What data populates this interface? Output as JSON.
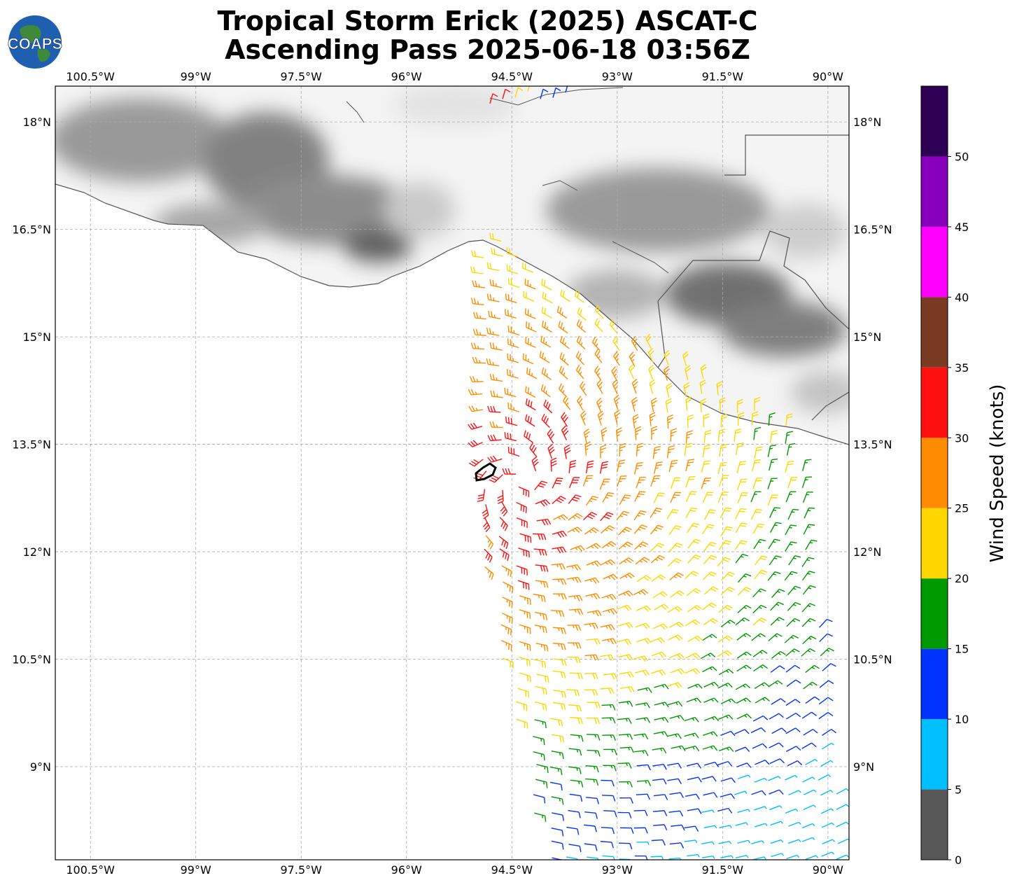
{
  "title": {
    "line1": "Tropical Storm Erick (2025) ASCAT-C",
    "line2": "Ascending Pass 2025-06-18 03:56Z"
  },
  "logo": {
    "text": "COAPS",
    "icon": "globe-icon"
  },
  "map": {
    "lon_range": [
      -101.0,
      -89.7
    ],
    "lat_range": [
      7.7,
      18.5
    ],
    "lon_ticks": [
      {
        "value": -100.5,
        "label": "100.5°W"
      },
      {
        "value": -99.0,
        "label": "99°W"
      },
      {
        "value": -97.5,
        "label": "97.5°W"
      },
      {
        "value": -96.0,
        "label": "96°W"
      },
      {
        "value": -94.5,
        "label": "94.5°W"
      },
      {
        "value": -93.0,
        "label": "93°W"
      },
      {
        "value": -91.5,
        "label": "91.5°W"
      },
      {
        "value": -90.0,
        "label": "90°W"
      }
    ],
    "lat_ticks": [
      {
        "value": 18.0,
        "label": "18°N"
      },
      {
        "value": 16.5,
        "label": "16.5°N"
      },
      {
        "value": 15.0,
        "label": "15°N"
      },
      {
        "value": 13.5,
        "label": "13.5°N"
      },
      {
        "value": 12.0,
        "label": "12°N"
      },
      {
        "value": 10.5,
        "label": "10.5°N"
      },
      {
        "value": 9.0,
        "label": "9°N"
      }
    ],
    "storm_center": {
      "lon": -94.4,
      "lat": 12.95
    }
  },
  "colorbar": {
    "title": "Wind Speed (knots)",
    "bins": [
      {
        "from": 0,
        "to": 5,
        "color": "#585858"
      },
      {
        "from": 5,
        "to": 10,
        "color": "#00bfff"
      },
      {
        "from": 10,
        "to": 15,
        "color": "#0033ff"
      },
      {
        "from": 15,
        "to": 20,
        "color": "#009900"
      },
      {
        "from": 20,
        "to": 25,
        "color": "#ffd700"
      },
      {
        "from": 25,
        "to": 30,
        "color": "#ff8c00"
      },
      {
        "from": 30,
        "to": 35,
        "color": "#ff1010"
      },
      {
        "from": 35,
        "to": 40,
        "color": "#7b3a22"
      },
      {
        "from": 40,
        "to": 45,
        "color": "#ff00ff"
      },
      {
        "from": 45,
        "to": 50,
        "color": "#8800bb"
      },
      {
        "from": 50,
        "to": 55,
        "color": "#2d0055"
      }
    ],
    "tick_labels": [
      "0",
      "5",
      "10",
      "15",
      "20",
      "25",
      "30",
      "35",
      "40",
      "45",
      "50"
    ]
  }
}
